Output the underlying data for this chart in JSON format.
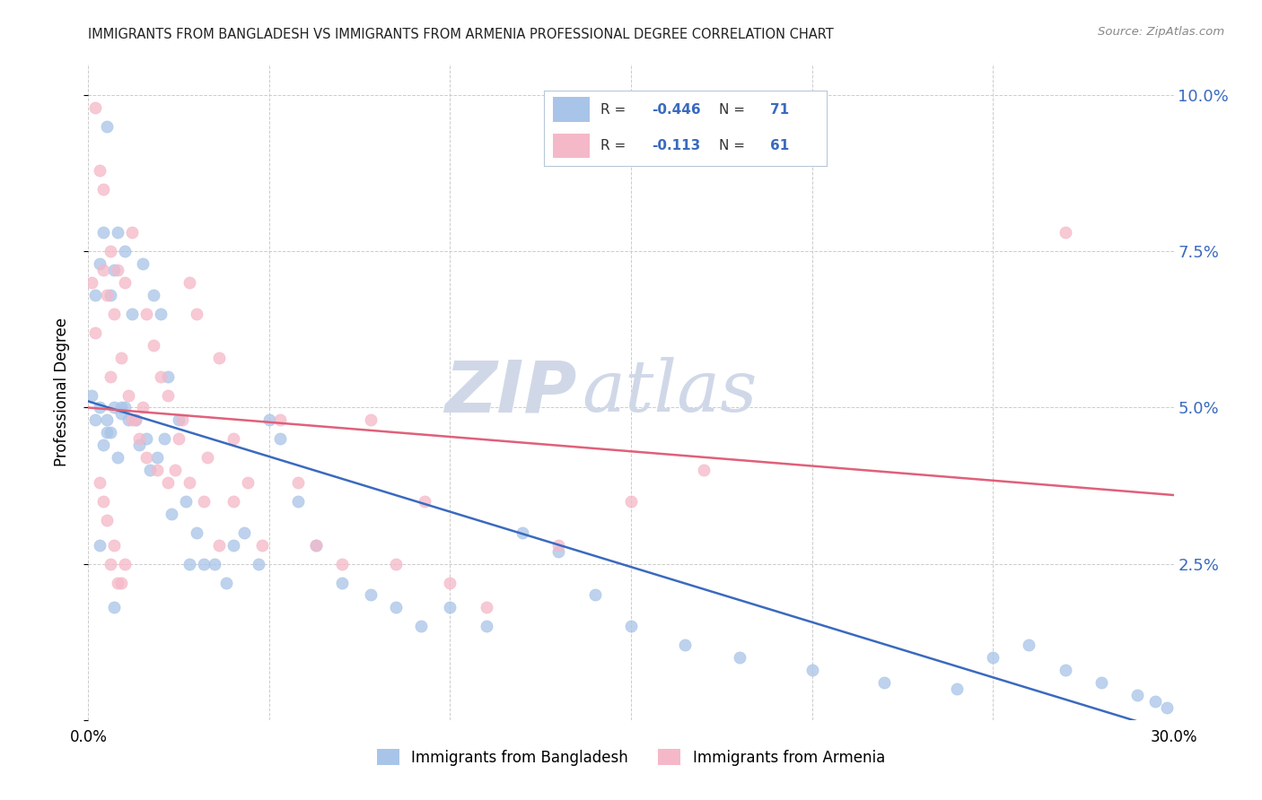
{
  "title": "IMMIGRANTS FROM BANGLADESH VS IMMIGRANTS FROM ARMENIA PROFESSIONAL DEGREE CORRELATION CHART",
  "source": "Source: ZipAtlas.com",
  "ylabel": "Professional Degree",
  "legend_label1": "Immigrants from Bangladesh",
  "legend_label2": "Immigrants from Armenia",
  "R1": "-0.446",
  "N1": "71",
  "R2": "-0.113",
  "N2": "61",
  "color1": "#a8c4e8",
  "color2": "#f5b8c8",
  "line_color1": "#3a6abf",
  "line_color2": "#e0607a",
  "watermark_color": "#d0d8e8",
  "x_min": 0.0,
  "x_max": 0.3,
  "y_min": 0.0,
  "y_max": 0.105,
  "yticks": [
    0.0,
    0.025,
    0.05,
    0.075,
    0.1
  ],
  "ytick_labels_right": [
    "",
    "2.5%",
    "5.0%",
    "7.5%",
    "10.0%"
  ],
  "xticks": [
    0.0,
    0.05,
    0.1,
    0.15,
    0.2,
    0.25,
    0.3
  ],
  "xtick_labels": [
    "0.0%",
    "",
    "",
    "",
    "",
    "",
    "30.0%"
  ],
  "background_color": "#ffffff",
  "grid_color": "#cccccc",
  "line1_x0": 0.0,
  "line1_y0": 0.051,
  "line1_x1": 0.3,
  "line1_y1": -0.002,
  "line2_x0": 0.0,
  "line2_y0": 0.05,
  "line2_x1": 0.3,
  "line2_y1": 0.036,
  "scatter1_x": [
    0.001,
    0.002,
    0.002,
    0.003,
    0.003,
    0.004,
    0.004,
    0.005,
    0.005,
    0.005,
    0.006,
    0.006,
    0.007,
    0.007,
    0.008,
    0.008,
    0.009,
    0.009,
    0.01,
    0.01,
    0.011,
    0.012,
    0.013,
    0.014,
    0.015,
    0.016,
    0.017,
    0.018,
    0.019,
    0.02,
    0.021,
    0.022,
    0.023,
    0.025,
    0.027,
    0.028,
    0.03,
    0.032,
    0.035,
    0.038,
    0.04,
    0.043,
    0.047,
    0.05,
    0.053,
    0.058,
    0.063,
    0.07,
    0.078,
    0.085,
    0.092,
    0.1,
    0.11,
    0.12,
    0.13,
    0.14,
    0.15,
    0.165,
    0.18,
    0.2,
    0.22,
    0.24,
    0.25,
    0.26,
    0.27,
    0.28,
    0.29,
    0.295,
    0.298,
    0.003,
    0.007
  ],
  "scatter1_y": [
    0.052,
    0.068,
    0.048,
    0.073,
    0.05,
    0.078,
    0.044,
    0.095,
    0.048,
    0.046,
    0.068,
    0.046,
    0.072,
    0.05,
    0.078,
    0.042,
    0.05,
    0.049,
    0.075,
    0.05,
    0.048,
    0.065,
    0.048,
    0.044,
    0.073,
    0.045,
    0.04,
    0.068,
    0.042,
    0.065,
    0.045,
    0.055,
    0.033,
    0.048,
    0.035,
    0.025,
    0.03,
    0.025,
    0.025,
    0.022,
    0.028,
    0.03,
    0.025,
    0.048,
    0.045,
    0.035,
    0.028,
    0.022,
    0.02,
    0.018,
    0.015,
    0.018,
    0.015,
    0.03,
    0.027,
    0.02,
    0.015,
    0.012,
    0.01,
    0.008,
    0.006,
    0.005,
    0.01,
    0.012,
    0.008,
    0.006,
    0.004,
    0.003,
    0.002,
    0.028,
    0.018
  ],
  "scatter2_x": [
    0.001,
    0.002,
    0.002,
    0.003,
    0.004,
    0.004,
    0.005,
    0.006,
    0.006,
    0.007,
    0.008,
    0.009,
    0.01,
    0.011,
    0.012,
    0.013,
    0.015,
    0.016,
    0.018,
    0.02,
    0.022,
    0.024,
    0.026,
    0.028,
    0.03,
    0.033,
    0.036,
    0.04,
    0.044,
    0.048,
    0.053,
    0.058,
    0.063,
    0.07,
    0.078,
    0.085,
    0.093,
    0.1,
    0.11,
    0.13,
    0.15,
    0.17,
    0.003,
    0.004,
    0.005,
    0.006,
    0.007,
    0.008,
    0.009,
    0.01,
    0.012,
    0.014,
    0.016,
    0.019,
    0.022,
    0.025,
    0.028,
    0.032,
    0.036,
    0.04,
    0.27
  ],
  "scatter2_y": [
    0.07,
    0.098,
    0.062,
    0.088,
    0.072,
    0.085,
    0.068,
    0.075,
    0.055,
    0.065,
    0.072,
    0.058,
    0.07,
    0.052,
    0.078,
    0.048,
    0.05,
    0.065,
    0.06,
    0.055,
    0.052,
    0.04,
    0.048,
    0.07,
    0.065,
    0.042,
    0.058,
    0.045,
    0.038,
    0.028,
    0.048,
    0.038,
    0.028,
    0.025,
    0.048,
    0.025,
    0.035,
    0.022,
    0.018,
    0.028,
    0.035,
    0.04,
    0.038,
    0.035,
    0.032,
    0.025,
    0.028,
    0.022,
    0.022,
    0.025,
    0.048,
    0.045,
    0.042,
    0.04,
    0.038,
    0.045,
    0.038,
    0.035,
    0.028,
    0.035,
    0.078
  ]
}
